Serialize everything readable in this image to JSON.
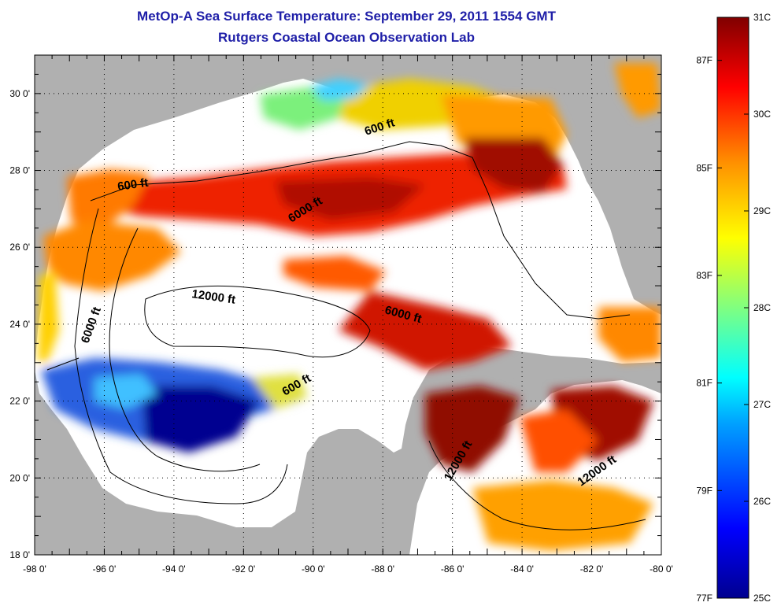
{
  "header": {
    "title": "MetOp-A Sea Surface Temperature:  September 29, 2011 1554 GMT",
    "subtitle": "Rutgers Coastal Ocean Observation Lab"
  },
  "map": {
    "lon_range": [
      -98,
      -80
    ],
    "lat_range": [
      18,
      31
    ],
    "x_tick_labels": [
      "-98 0'",
      "-96 0'",
      "-94 0'",
      "-92 0'",
      "-90 0'",
      "-88 0'",
      "-86 0'",
      "-84 0'",
      "-82 0'",
      "-80 0'"
    ],
    "y_tick_labels": [
      "18 0'",
      "20 0'",
      "22 0'",
      "24 0'",
      "26 0'",
      "28 0'",
      "30 0'"
    ],
    "contour_labels": [
      "600 ft",
      "600 ft",
      "600 ft",
      "6000 ft",
      "6000 ft",
      "6000 ft",
      "12000 ft",
      "12000 ft",
      "12000 ft"
    ],
    "colors": {
      "land": "#b0b0b0",
      "no_data": "#ffffff"
    }
  },
  "colorbar": {
    "celsius_labels": [
      "31C",
      "30C",
      "29C",
      "28C",
      "27C",
      "26C",
      "25C"
    ],
    "fahrenheit_labels": [
      "87F",
      "85F",
      "83F",
      "81F",
      "79F",
      "77F"
    ],
    "range_c": [
      25,
      31
    ]
  }
}
